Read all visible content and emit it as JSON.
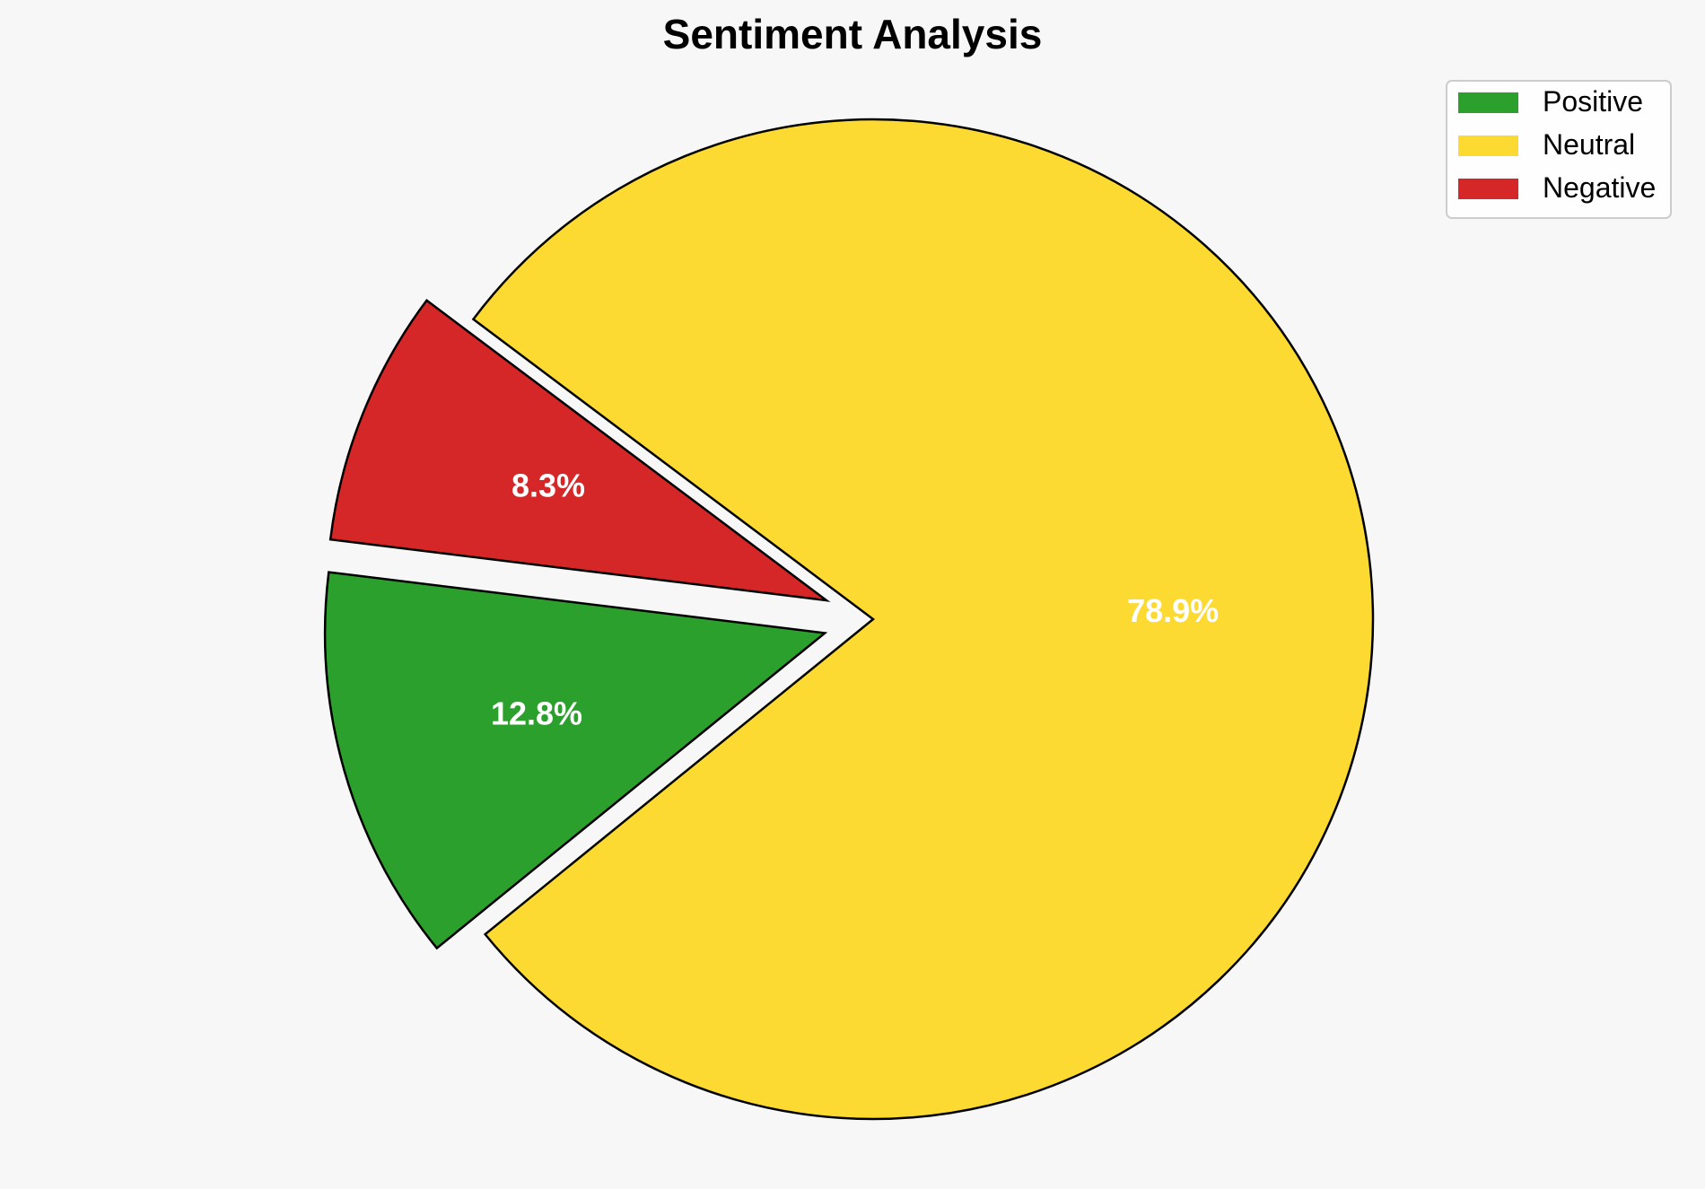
{
  "chart_data": {
    "type": "pie",
    "title": "Sentiment Analysis",
    "slices": [
      {
        "name": "Positive",
        "value": 12.8,
        "label": "12.8%",
        "color": "#2ca02c",
        "exploded": true
      },
      {
        "name": "Neutral",
        "value": 78.9,
        "label": "78.9%",
        "color": "#fdda31",
        "exploded": false
      },
      {
        "name": "Negative",
        "value": 8.3,
        "label": "8.3%",
        "color": "#d62728",
        "exploded": true
      }
    ],
    "legend": {
      "placement": "top-right",
      "entries": [
        "Positive",
        "Neutral",
        "Negative"
      ]
    },
    "background": "#f7f7f7",
    "edge_color": "#000000"
  }
}
